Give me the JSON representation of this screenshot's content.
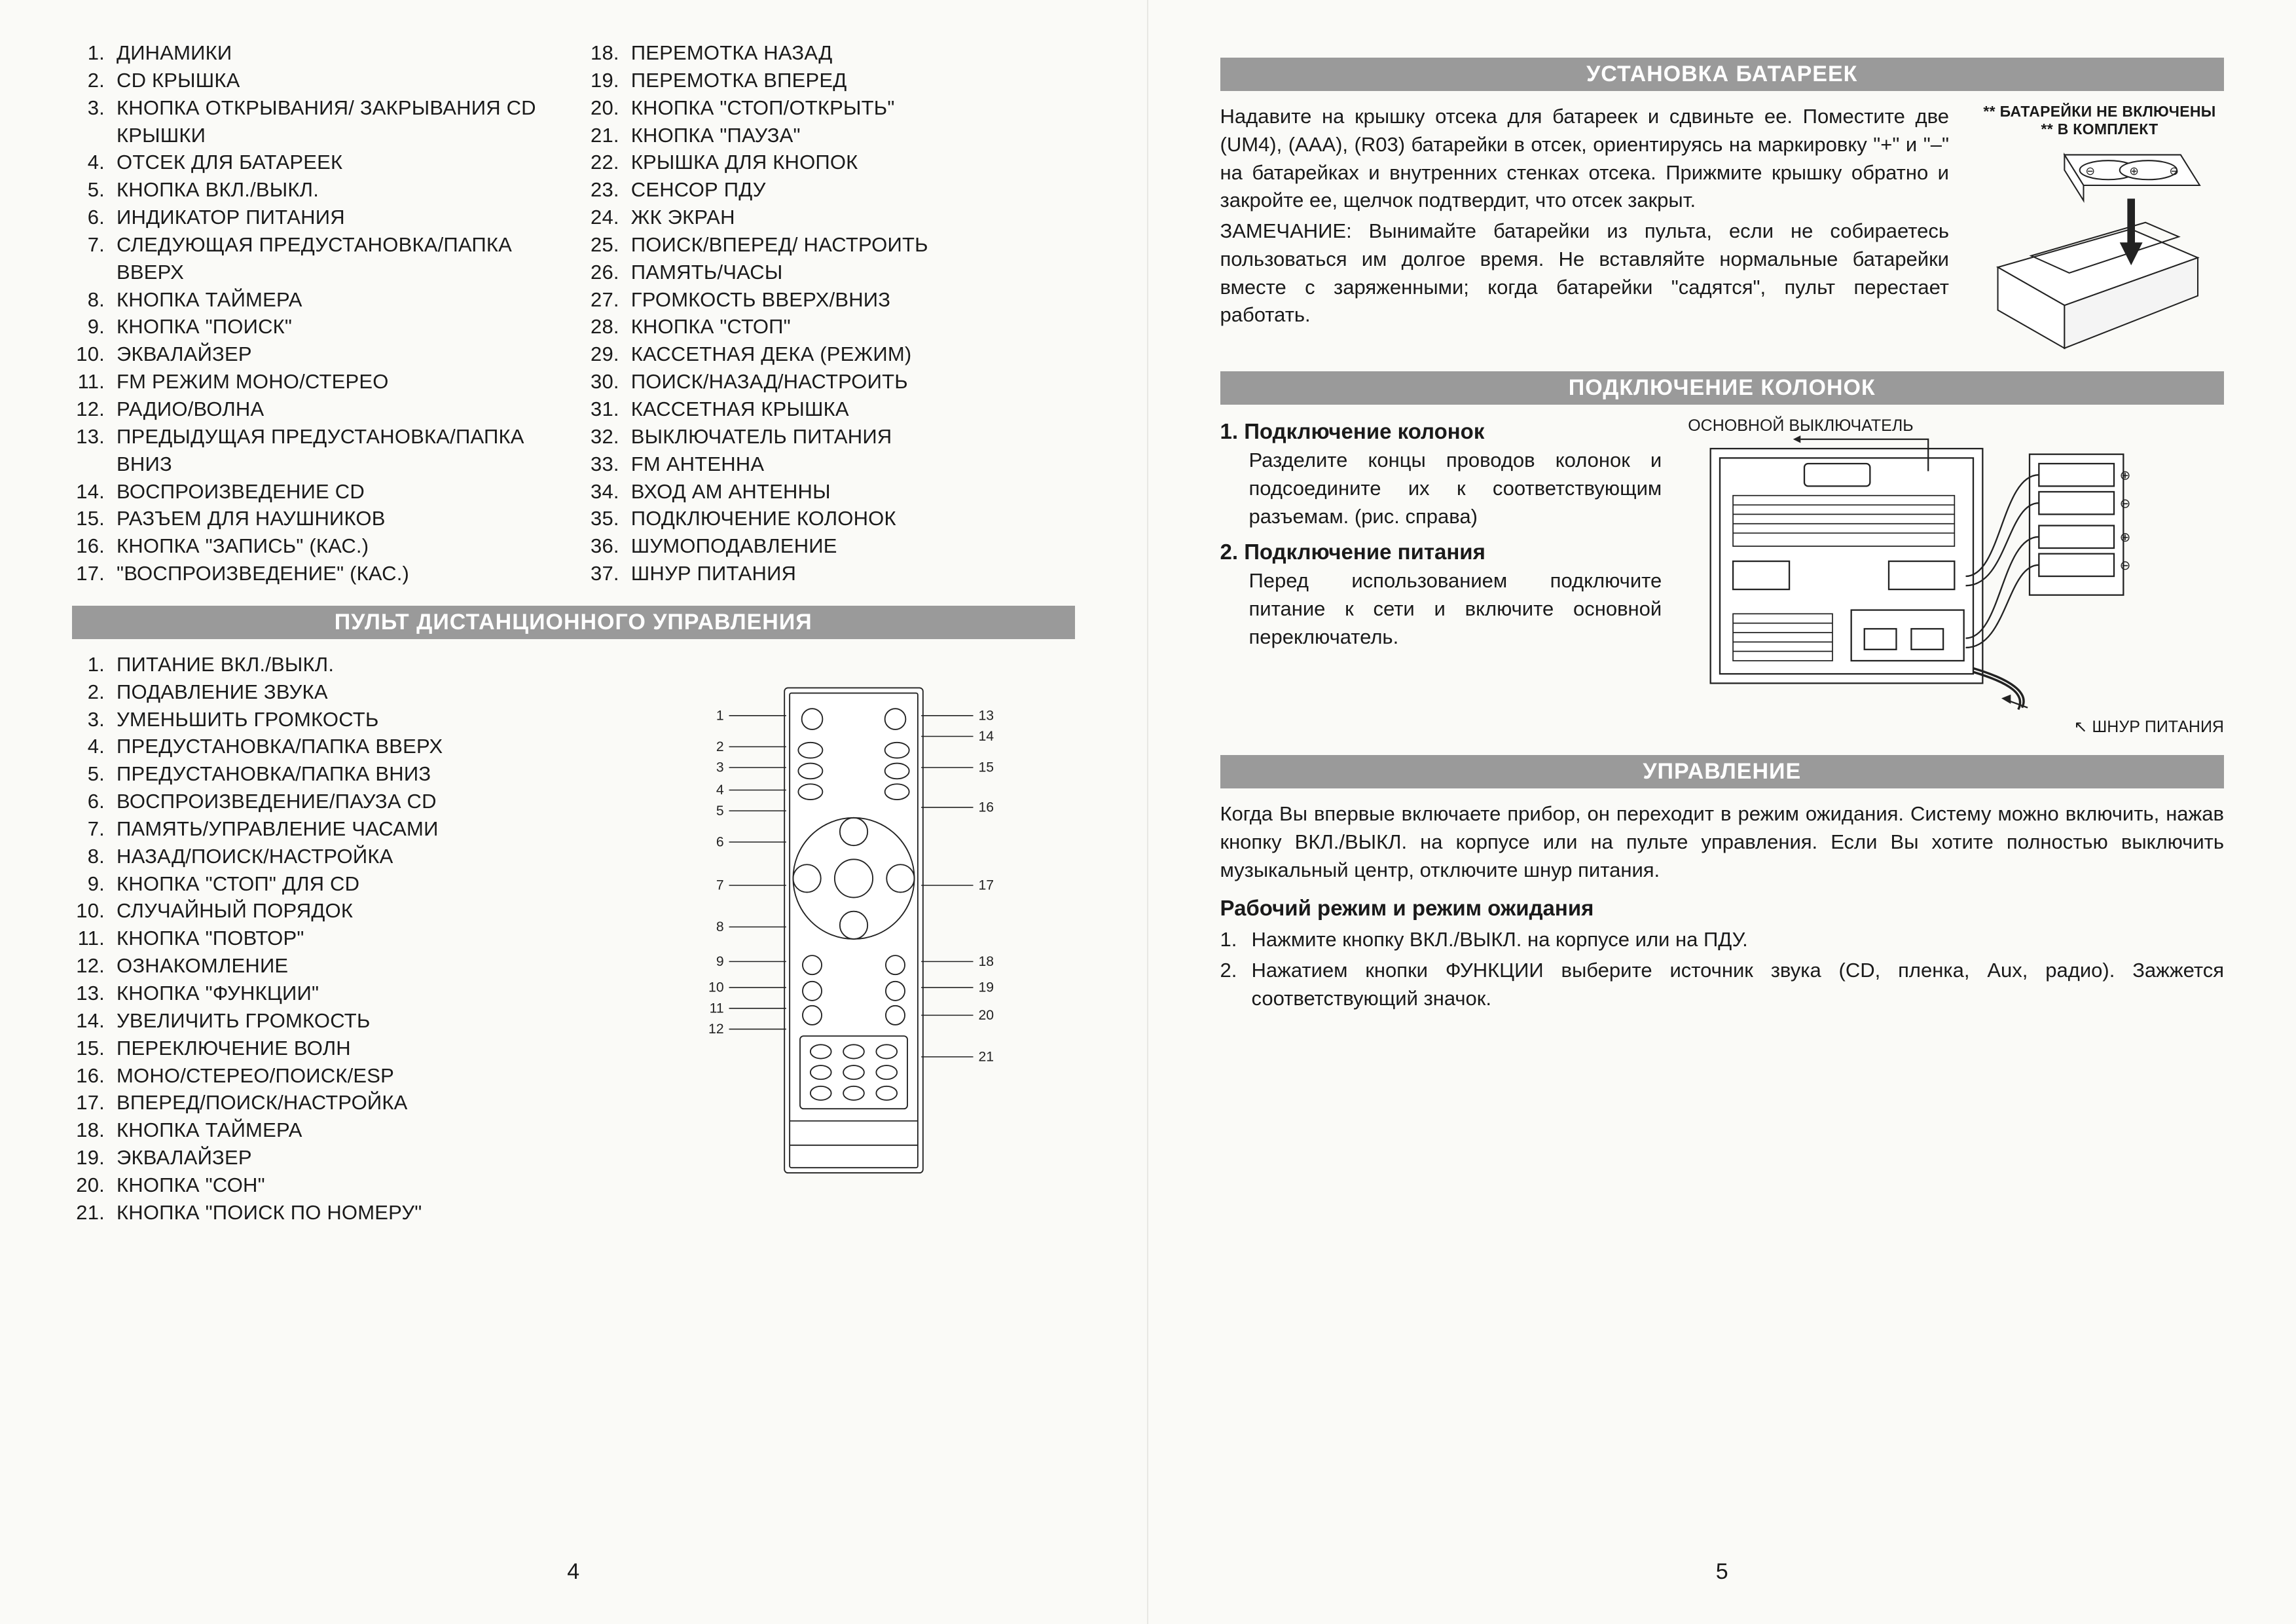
{
  "page_left_num": "4",
  "page_right_num": "5",
  "parts_list_a": [
    "ДИНАМИКИ",
    "CD КРЫШКА",
    "КНОПКА ОТКРЫВАНИЯ/ ЗАКРЫВАНИЯ CD КРЫШКИ",
    "ОТСЕК ДЛЯ БАТАРЕЕК",
    "КНОПКА ВКЛ./ВЫКЛ.",
    "ИНДИКАТОР ПИТАНИЯ",
    "СЛЕДУЮЩАЯ ПРЕДУСТАНОВКА/ПАПКА ВВЕРХ",
    "КНОПКА ТАЙМЕРА",
    "КНОПКА \"ПОИСК\"",
    "ЭКВАЛАЙЗЕР",
    "FM РЕЖИМ МОНО/СТЕРЕО",
    "РАДИО/ВОЛНА",
    "ПРЕДЫДУЩАЯ ПРЕДУСТАНОВКА/ПАПКА ВНИЗ",
    "ВОСПРОИЗВЕДЕНИЕ CD",
    "РАЗЪЕМ ДЛЯ НАУШНИКОВ",
    "КНОПКА \"ЗАПИСЬ\" (КАС.)",
    "\"ВОСПРОИЗВЕДЕНИЕ\" (КАС.)"
  ],
  "parts_list_b_start": 18,
  "parts_list_b": [
    "ПЕРЕМОТКА НАЗАД",
    "ПЕРЕМОТКА ВПЕРЕД",
    "КНОПКА \"СТОП/ОТКРЫТЬ\"",
    "КНОПКА \"ПАУЗА\"",
    "КРЫШКА ДЛЯ КНОПОК",
    "СЕНСОР ПДУ",
    "ЖК ЭКРАН",
    "ПОИСК/ВПЕРЕД/ НАСТРОИТЬ",
    "ПАМЯТЬ/ЧАСЫ",
    "ГРОМКОСТЬ ВВЕРХ/ВНИЗ",
    "КНОПКА \"СТОП\"",
    "КАССЕТНАЯ ДЕКА (РЕЖИМ)",
    "ПОИСК/НАЗАД/НАСТРОИТЬ",
    "КАССЕТНАЯ КРЫШКА",
    "ВЫКЛЮЧАТЕЛЬ ПИТАНИЯ",
    "FM АНТЕННА",
    "ВХОД AM АНТЕННЫ",
    "ПОДКЛЮЧЕНИЕ КОЛОНОК",
    "ШУМОПОДАВЛЕНИЕ",
    "ШНУР ПИТАНИЯ"
  ],
  "remote_header": "ПУЛЬТ ДИСТАНЦИОННОГО УПРАВЛЕНИЯ",
  "remote_list": [
    "ПИТАНИЕ ВКЛ./ВЫКЛ.",
    "ПОДАВЛЕНИЕ ЗВУКА",
    "УМЕНЬШИТЬ ГРОМКОСТЬ",
    "ПРЕДУСТАНОВКА/ПАПКА ВВЕРХ",
    "ПРЕДУСТАНОВКА/ПАПКА ВНИЗ",
    "ВОСПРОИЗВЕДЕНИЕ/ПАУЗА CD",
    "ПАМЯТЬ/УПРАВЛЕНИЕ ЧАСАМИ",
    "НАЗАД/ПОИСК/НАСТРОЙКА",
    "КНОПКА \"СТОП\" ДЛЯ CD",
    "СЛУЧАЙНЫЙ ПОРЯДОК",
    "КНОПКА \"ПОВТОР\"",
    "ОЗНАКОМЛЕНИЕ",
    "КНОПКА \"ФУНКЦИИ\"",
    "УВЕЛИЧИТЬ ГРОМКОСТЬ",
    "ПЕРЕКЛЮЧЕНИЕ ВОЛН",
    "МОНО/СТЕРЕО/ПОИСК/ESP",
    "ВПЕРЕД/ПОИСК/НАСТРОЙКА",
    "КНОПКА ТАЙМЕРА",
    "ЭКВАЛАЙЗЕР",
    "КНОПКА \"СОН\"",
    "КНОПКА \"ПОИСК ПО НОМЕРУ\""
  ],
  "battery_header": "УСТАНОВКА БАТАРЕЕК",
  "battery_caption": "** БАТАРЕЙКИ НЕ ВКЛЮЧЕНЫ ** В КОМПЛЕКТ",
  "battery_text_1": "Надавите на крышку отсека для батареек и сдвиньте ее. Поместите две (UM4), (AAA), (R03) батарейки в отсек, ориентируясь на маркировку \"+\" и \"–\" на батарейках и внутренних стенках отсека. Прижмите крышку обратно и закройте ее, щелчок подтвердит, что отсек закрыт.",
  "battery_text_2": "ЗАМЕЧАНИЕ: Вынимайте батарейки из пульта, если не собираетесь пользоваться им долгое время. Не вставляйте нормальные батарейки вместе с заряженными; когда батарейки \"садятся\", пульт перестает работать.",
  "speakers_header": "ПОДКЛЮЧЕНИЕ КОЛОНОК",
  "speakers": {
    "h1": "1. Подключение колонок",
    "p1": "Разделите концы проводов колонок и подсоедините их к соответствующим разъемам. (рис. справа)",
    "h2": "2. Подключение питания",
    "p2": "Перед использованием подключите питание к сети и включите основной переключатель.",
    "cap_top": "ОСНОВНОЙ ВЫКЛЮЧАТЕЛЬ",
    "cap_bottom": "ШНУР ПИТАНИЯ"
  },
  "control_header": "УПРАВЛЕНИЕ",
  "control_p1": "Когда Вы впервые включаете прибор, он переходит в режим ожидания. Систему можно включить, нажав кнопку ВКЛ./ВЫКЛ. на корпусе или на пульте управления. Если Вы хотите полностью выключить музыкальный центр, отключите шнур питания.",
  "control_h": "Рабочий режим и режим ожидания",
  "control_steps": [
    "Нажмите кнопку ВКЛ./ВЫКЛ. на корпусе или на ПДУ.",
    "Нажатием кнопки ФУНКЦИИ выберите источник звука (CD, пленка, Aux, радио). Зажжется соответствующий значок."
  ],
  "remote_diagram": {
    "left_nums": [
      1,
      2,
      3,
      4,
      5,
      6,
      7,
      8,
      9,
      10,
      11,
      12
    ],
    "left_y": [
      52,
      88,
      112,
      138,
      162,
      198,
      248,
      296,
      336,
      366,
      390,
      414
    ],
    "right_nums": [
      13,
      14,
      15,
      16,
      17,
      18,
      19,
      20,
      21
    ],
    "right_y": [
      52,
      76,
      112,
      158,
      248,
      336,
      366,
      398,
      446
    ]
  },
  "colors": {
    "header_bg": "#9a9a9a",
    "header_fg": "#ffffff",
    "text": "#1a1a1a",
    "paper": "#fafaf7",
    "stroke": "#222222"
  }
}
